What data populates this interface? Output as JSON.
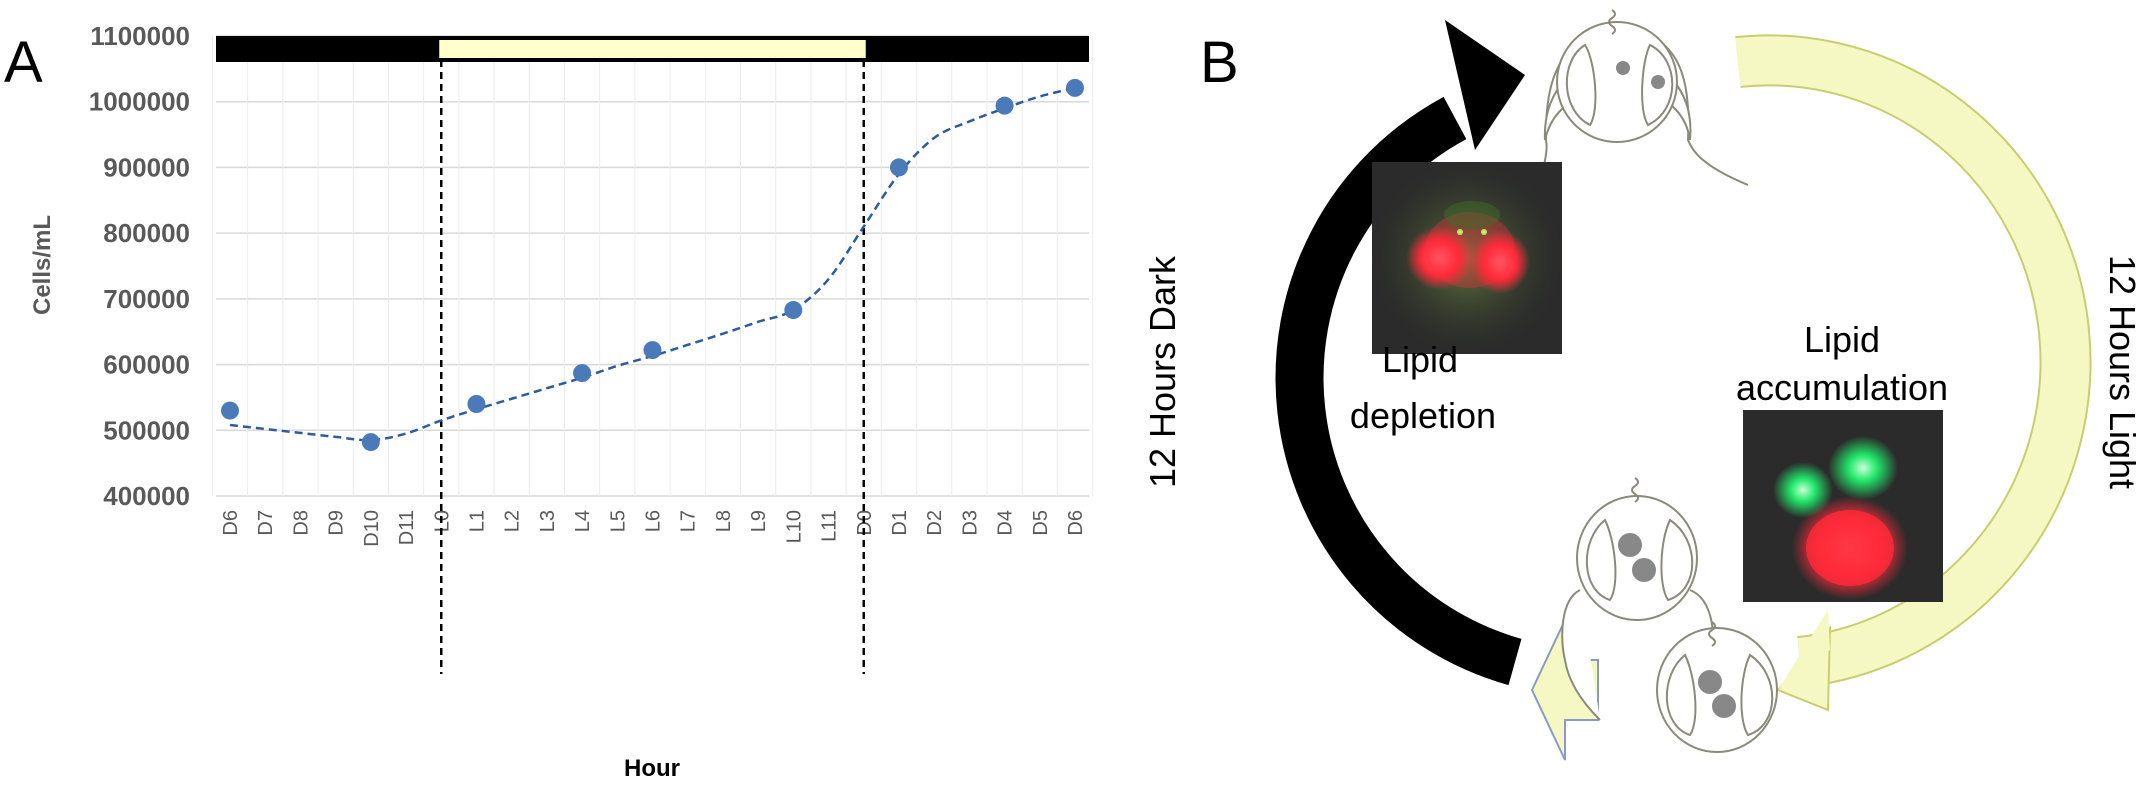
{
  "panel_a": {
    "letter": "A",
    "chart_data": {
      "type": "scatter",
      "x_categories": [
        "D6",
        "D7",
        "D8",
        "D9",
        "D10",
        "D11",
        "L0",
        "L1",
        "L2",
        "L3",
        "L4",
        "L5",
        "L6",
        "L7",
        "L8",
        "L9",
        "L10",
        "L11",
        "D0",
        "D1",
        "D2",
        "D3",
        "D4",
        "D5",
        "D6"
      ],
      "points": [
        {
          "x": "D6",
          "y": 530000
        },
        {
          "x": "D10",
          "y": 482000
        },
        {
          "x": "L1",
          "y": 540000
        },
        {
          "x": "L4",
          "y": 587000
        },
        {
          "x": "L6",
          "y": 622000
        },
        {
          "x": "L10",
          "y": 683000
        },
        {
          "x": "D1",
          "y": 900000
        },
        {
          "x": "D4",
          "y": 994000
        },
        {
          "x": "D6",
          "y": 1021000
        }
      ],
      "trend_line": {
        "style": "dashed",
        "values": [
          508000,
          502000,
          496000,
          490000,
          485000,
          495000,
          515000,
          532000,
          548000,
          564000,
          580000,
          598000,
          613000,
          630000,
          647000,
          665000,
          683000,
          730000,
          810000,
          890000,
          945000,
          970000,
          990000,
          1008000,
          1021000
        ]
      },
      "ylim": [
        400000,
        1100000
      ],
      "y_ticks": [
        "400000",
        "500000",
        "600000",
        "700000",
        "800000",
        "900000",
        "1000000",
        "1100000"
      ],
      "ylabel": "Cells/mL",
      "xlabel": "Hour",
      "light_dark_bar": {
        "dark_color": "#000000",
        "light_color": "#ffffcc",
        "light_start": "L0",
        "light_end": "D0"
      },
      "grid": true,
      "marker_color": "#4a7ab8",
      "line_color": "#2e5c9a"
    }
  },
  "panel_b": {
    "letter": "B",
    "dark_label": "12 Hours Dark",
    "light_label": "12 Hours Light",
    "depletion_label": [
      "Lipid",
      "depletion"
    ],
    "accumulation_label": [
      "Lipid",
      "accumulation"
    ],
    "colors": {
      "dark_arrow": "#000000",
      "light_arrow": "#f5f8c2",
      "light_arrow_border": "#c8ce70",
      "lipid_red": "#ff2a3a",
      "lipid_green": "#22e86a"
    },
    "icons": [
      "cell-icon",
      "lipid-droplet-icon",
      "fluorescence-micrograph"
    ]
  }
}
